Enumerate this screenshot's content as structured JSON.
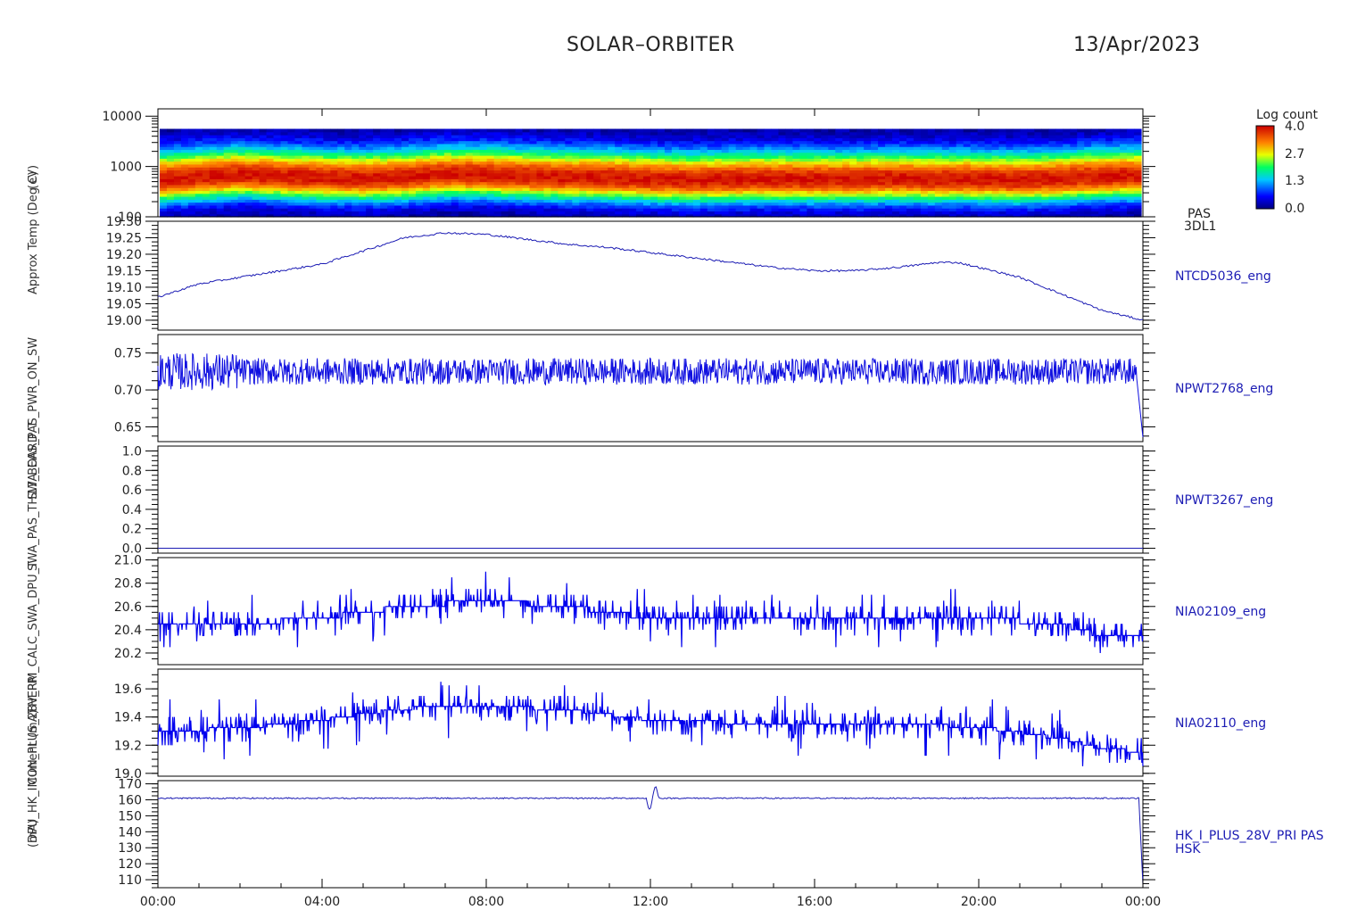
{
  "header": {
    "mission": "SOLAR–ORBITER",
    "date": "13/Apr/2023"
  },
  "y_axis_labels": [
    "(eV)",
    "Approx Temp (Deg C)",
    "SWA_EAS_PAS_PWR_ON_SW",
    "SWA_PAS_TH17_BOARD_T",
    "THERM_CALC_SWA_DPU_T",
    "Current (mA)",
    "(mA)"
  ],
  "ylabels_overlap": "DPU_HK_IMON_PLUS_28V_PRI",
  "colorbar": {
    "title": "Log count",
    "ticks": [
      "4.0",
      "2.7",
      "1.3",
      "0.0"
    ],
    "min": 0.0,
    "max": 4.0
  },
  "chart_data": [
    {
      "id": "spectrogram",
      "type": "heatmap",
      "ylabel": "(eV)",
      "ylim": [
        100,
        14000
      ],
      "yscale": "log",
      "yticks": [
        "10000",
        "1000",
        "100"
      ],
      "right_label_1": "PAS",
      "right_label_2": "3DL1",
      "peak_energy_ev": [
        550,
        620,
        690,
        640,
        600,
        580,
        620,
        700,
        690,
        640,
        610,
        600,
        560,
        540,
        560,
        570,
        560,
        560,
        580,
        560,
        570,
        540,
        580,
        640,
        660
      ]
    },
    {
      "id": "temp-1",
      "type": "line",
      "right_label": "NTCD5036_eng",
      "ylim": [
        18.97,
        19.3
      ],
      "yticks": [
        "19.30",
        "19.25",
        "19.20",
        "19.15",
        "19.10",
        "19.05",
        "19.00"
      ],
      "tick_values": [
        19.3,
        19.25,
        19.2,
        19.15,
        19.1,
        19.05,
        19.0
      ],
      "x_hours": [
        0,
        1,
        2,
        3,
        4,
        5,
        6,
        7,
        8,
        9,
        10,
        11,
        12,
        13,
        14,
        15,
        16,
        17,
        18,
        19,
        19.5,
        20,
        21,
        22,
        23,
        24
      ],
      "values": [
        19.07,
        19.11,
        19.13,
        19.15,
        19.17,
        19.21,
        19.25,
        19.265,
        19.26,
        19.245,
        19.23,
        19.22,
        19.205,
        19.19,
        19.175,
        19.16,
        19.15,
        19.15,
        19.16,
        19.175,
        19.175,
        19.16,
        19.13,
        19.08,
        19.03,
        19.0
      ]
    },
    {
      "id": "board-temp",
      "type": "line",
      "right_label": "NPWT2768_eng",
      "ylim": [
        0.63,
        0.775
      ],
      "yticks": [
        "0.75",
        "0.70",
        "0.65"
      ],
      "tick_values": [
        0.75,
        0.7,
        0.65
      ],
      "baseline": 0.725,
      "noise": 0.018,
      "end_drop": 0.636
    },
    {
      "id": "power-on",
      "type": "line",
      "right_label": "NPWT3267_eng",
      "ylim": [
        -0.05,
        1.05
      ],
      "yticks": [
        "1.0",
        "0.8",
        "0.6",
        "0.4",
        "0.2",
        "0.0"
      ],
      "tick_values": [
        1.0,
        0.8,
        0.6,
        0.4,
        0.2,
        0.0
      ],
      "value": 0.0
    },
    {
      "id": "dpu-temp",
      "type": "line",
      "right_label": "NIA02109_eng",
      "ylim": [
        20.1,
        21.02
      ],
      "yticks": [
        "21.0",
        "20.8",
        "20.6",
        "20.4",
        "20.2"
      ],
      "tick_values": [
        21.0,
        20.8,
        20.6,
        20.4,
        20.2
      ],
      "x_hours": [
        0,
        2,
        4,
        6,
        8,
        10,
        12,
        14,
        16,
        18,
        20,
        22,
        23,
        24
      ],
      "values": [
        20.45,
        20.45,
        20.5,
        20.6,
        20.65,
        20.6,
        20.5,
        20.5,
        20.5,
        20.5,
        20.5,
        20.45,
        20.35,
        20.35
      ],
      "step": 0.05,
      "noise": 0.12
    },
    {
      "id": "current",
      "type": "line",
      "right_label": "NIA02110_eng",
      "ylim": [
        18.98,
        19.74
      ],
      "yticks": [
        "19.6",
        "19.4",
        "19.2",
        "19.0"
      ],
      "tick_values": [
        19.6,
        19.4,
        19.2,
        19.0
      ],
      "x_hours": [
        0,
        2,
        4,
        6,
        8,
        10,
        12,
        14,
        16,
        18,
        20,
        22,
        23,
        24
      ],
      "values": [
        19.3,
        19.32,
        19.38,
        19.46,
        19.48,
        19.45,
        19.38,
        19.36,
        19.35,
        19.35,
        19.33,
        19.25,
        19.18,
        19.15
      ],
      "step": 0.025,
      "noise": 0.1
    },
    {
      "id": "imon-28v",
      "type": "line",
      "right_label_1": "HK_I_PLUS_28V_PRI PAS",
      "right_label_2": "HSK",
      "ylim": [
        105,
        172
      ],
      "yticks": [
        "170",
        "160",
        "150",
        "140",
        "130",
        "120",
        "110"
      ],
      "tick_values": [
        170,
        160,
        150,
        140,
        130,
        120,
        110
      ],
      "baseline": 161,
      "glitch_hour": 12.05,
      "end_value": 107
    }
  ],
  "x_axis": {
    "type": "time",
    "range_hours": [
      0,
      24
    ],
    "tick_labels": [
      "00:00",
      "04:00",
      "08:00",
      "12:00",
      "16:00",
      "20:00",
      "00:00"
    ],
    "tick_hours": [
      0,
      4,
      8,
      12,
      16,
      20,
      24
    ]
  }
}
